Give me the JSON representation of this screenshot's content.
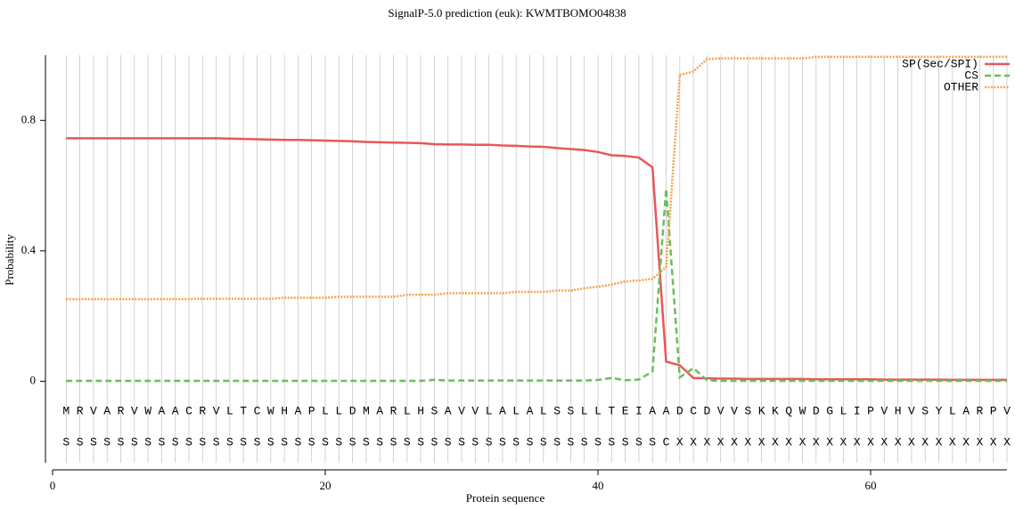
{
  "chart_data": {
    "type": "line",
    "title": "SignalP-5.0 prediction (euk):  KWMTBOMO04838",
    "xlabel": "Protein sequence",
    "ylabel": "Probability",
    "x": [
      1,
      2,
      3,
      4,
      5,
      6,
      7,
      8,
      9,
      10,
      11,
      12,
      13,
      14,
      15,
      16,
      17,
      18,
      19,
      20,
      21,
      22,
      23,
      24,
      25,
      26,
      27,
      28,
      29,
      30,
      31,
      32,
      33,
      34,
      35,
      36,
      37,
      38,
      39,
      40,
      41,
      42,
      43,
      44,
      45,
      46,
      47,
      48,
      49,
      50,
      51,
      52,
      53,
      54,
      55,
      56,
      57,
      58,
      59,
      60,
      61,
      62,
      63,
      64,
      65,
      66,
      67,
      68,
      69,
      70
    ],
    "residues": [
      "M",
      "R",
      "V",
      "A",
      "R",
      "V",
      "W",
      "A",
      "A",
      "C",
      "R",
      "V",
      "L",
      "T",
      "C",
      "W",
      "H",
      "A",
      "P",
      "L",
      "L",
      "D",
      "M",
      "A",
      "R",
      "L",
      "H",
      "S",
      "A",
      "V",
      "V",
      "L",
      "A",
      "L",
      "A",
      "L",
      "S",
      "S",
      "L",
      "L",
      "T",
      "E",
      "I",
      "A",
      "A",
      "D",
      "C",
      "D",
      "V",
      "V",
      "S",
      "K",
      "K",
      "Q",
      "W",
      "D",
      "G",
      "L",
      "I",
      "P",
      "V",
      "H",
      "V",
      "S",
      "Y",
      "L",
      "A",
      "R",
      "P",
      "V"
    ],
    "predicted_labels": [
      "S",
      "S",
      "S",
      "S",
      "S",
      "S",
      "S",
      "S",
      "S",
      "S",
      "S",
      "S",
      "S",
      "S",
      "S",
      "S",
      "S",
      "S",
      "S",
      "S",
      "S",
      "S",
      "S",
      "S",
      "S",
      "S",
      "S",
      "S",
      "S",
      "S",
      "S",
      "S",
      "S",
      "S",
      "S",
      "S",
      "S",
      "S",
      "S",
      "S",
      "S",
      "S",
      "S",
      "S",
      "C",
      "X",
      "X",
      "X",
      "X",
      "X",
      "X",
      "X",
      "X",
      "X",
      "X",
      "X",
      "X",
      "X",
      "X",
      "X",
      "X",
      "X",
      "X",
      "X",
      "X",
      "X",
      "X",
      "X",
      "X",
      "X"
    ],
    "series": [
      {
        "name": "SP(Sec/SPI)",
        "color": "#e8575a",
        "dash": "solid",
        "values": [
          0.745,
          0.745,
          0.745,
          0.745,
          0.745,
          0.745,
          0.745,
          0.745,
          0.745,
          0.745,
          0.745,
          0.745,
          0.744,
          0.743,
          0.742,
          0.741,
          0.74,
          0.74,
          0.739,
          0.738,
          0.737,
          0.736,
          0.734,
          0.733,
          0.732,
          0.731,
          0.73,
          0.727,
          0.726,
          0.726,
          0.725,
          0.725,
          0.723,
          0.722,
          0.72,
          0.719,
          0.715,
          0.712,
          0.709,
          0.703,
          0.693,
          0.691,
          0.686,
          0.656,
          0.06,
          0.049,
          0.01,
          0.009,
          0.008,
          0.008,
          0.007,
          0.007,
          0.007,
          0.007,
          0.007,
          0.006,
          0.006,
          0.006,
          0.006,
          0.006,
          0.005,
          0.005,
          0.005,
          0.005,
          0.005,
          0.004,
          0.004,
          0.004,
          0.004,
          0.004
        ]
      },
      {
        "name": "CS",
        "color": "#6bbd5b",
        "dash": "dashed",
        "values": [
          0.001,
          0.001,
          0.001,
          0.001,
          0.001,
          0.001,
          0.001,
          0.001,
          0.001,
          0.001,
          0.001,
          0.001,
          0.001,
          0.001,
          0.001,
          0.001,
          0.001,
          0.001,
          0.001,
          0.001,
          0.001,
          0.001,
          0.001,
          0.001,
          0.001,
          0.001,
          0.001,
          0.004,
          0.002,
          0.002,
          0.002,
          0.002,
          0.002,
          0.002,
          0.002,
          0.002,
          0.002,
          0.002,
          0.002,
          0.004,
          0.01,
          0.003,
          0.005,
          0.03,
          0.59,
          0.012,
          0.04,
          0.003,
          0.001,
          0.001,
          0.001,
          0.001,
          0.001,
          0.001,
          0.001,
          0.001,
          0.001,
          0.001,
          0.001,
          0.001,
          0.001,
          0.001,
          0.001,
          0.001,
          0.001,
          0.001,
          0.001,
          0.001,
          0.001,
          0.001
        ]
      },
      {
        "name": "OTHER",
        "color": "#f5a24c",
        "dash": "dotted",
        "values": [
          0.252,
          0.252,
          0.252,
          0.252,
          0.252,
          0.252,
          0.252,
          0.252,
          0.252,
          0.252,
          0.253,
          0.253,
          0.253,
          0.253,
          0.253,
          0.253,
          0.256,
          0.256,
          0.256,
          0.256,
          0.259,
          0.259,
          0.259,
          0.259,
          0.259,
          0.265,
          0.265,
          0.265,
          0.27,
          0.27,
          0.27,
          0.27,
          0.27,
          0.274,
          0.274,
          0.274,
          0.278,
          0.278,
          0.285,
          0.29,
          0.296,
          0.306,
          0.309,
          0.314,
          0.35,
          0.939,
          0.95,
          0.988,
          0.99,
          0.99,
          0.99,
          0.99,
          0.99,
          0.99,
          0.99,
          0.995,
          0.995,
          0.995,
          0.995,
          0.995,
          0.995,
          0.995,
          0.995,
          0.995,
          0.995,
          0.995,
          0.995,
          0.995,
          0.995,
          0.995
        ]
      }
    ],
    "xlim": [
      0,
      70
    ],
    "ylim": [
      -0.25,
      1.0
    ],
    "xticks": [
      0,
      20,
      40,
      60
    ],
    "yticks": [
      0,
      0.4,
      0.8
    ],
    "grid": true,
    "legend": "upper right"
  }
}
